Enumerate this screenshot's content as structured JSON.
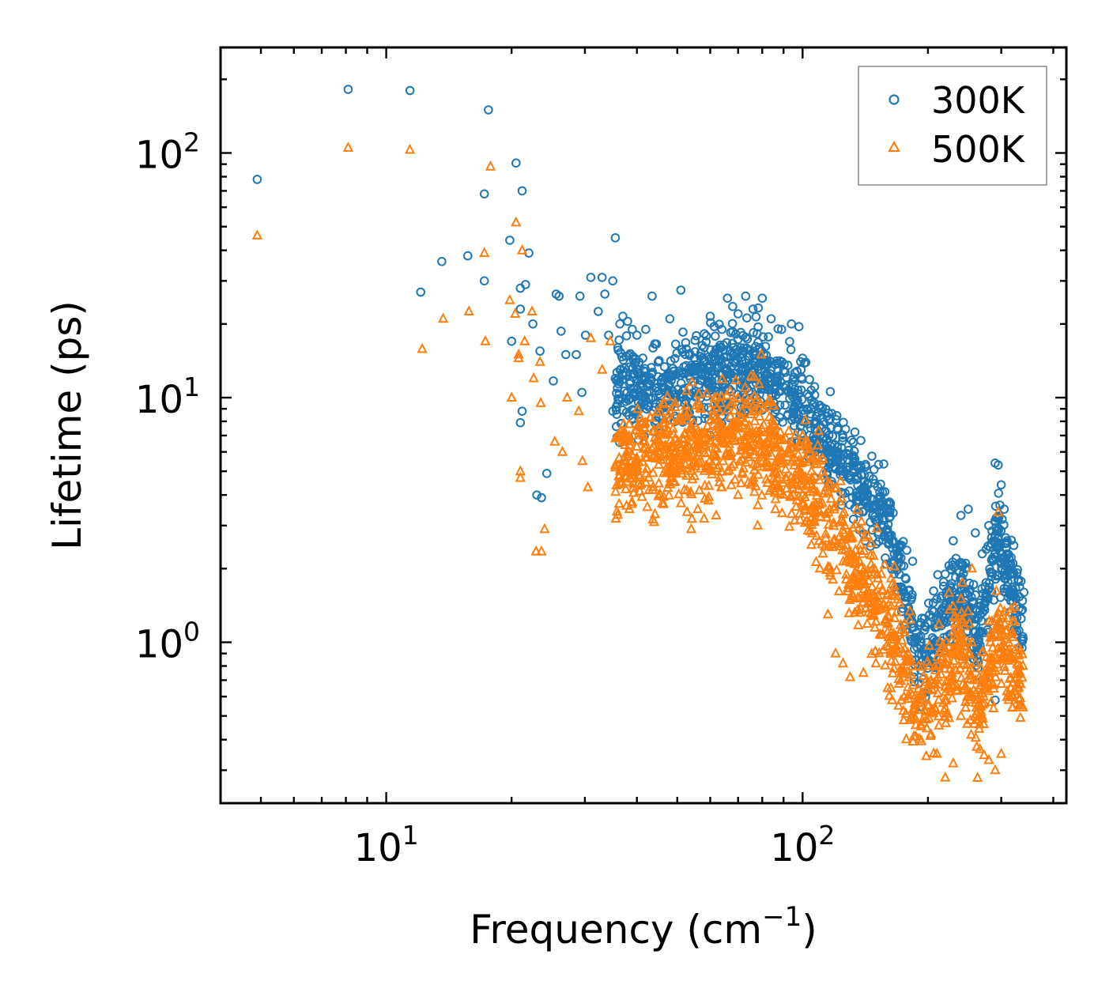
{
  "chart_data": {
    "type": "scatter",
    "xscale": "log",
    "yscale": "log",
    "xlabel": "Frequency (cm",
    "xlabel_sup": "−1",
    "xlabel_end": ")",
    "ylabel": "Lifetime (ps)",
    "xlim": [
      4.0,
      430
    ],
    "ylim": [
      0.22,
      270
    ],
    "x_ticks": [
      {
        "value": 10,
        "base": "10",
        "exp": "1"
      },
      {
        "value": 100,
        "base": "10",
        "exp": "2"
      }
    ],
    "y_ticks": [
      {
        "value": 1,
        "base": "10",
        "exp": "0"
      },
      {
        "value": 10,
        "base": "10",
        "exp": "1"
      },
      {
        "value": 100,
        "base": "10",
        "exp": "2"
      }
    ],
    "legend": {
      "position": "top-right",
      "entries": [
        "300K",
        "500K"
      ]
    },
    "series": [
      {
        "name": "300K",
        "marker": "circle",
        "color": "#1f77b4",
        "points": [
          [
            4.9,
            78
          ],
          [
            8.1,
            182
          ],
          [
            11.4,
            180
          ],
          [
            17.6,
            150
          ],
          [
            20.5,
            91
          ],
          [
            21.2,
            70
          ],
          [
            17.2,
            68
          ],
          [
            19.8,
            44
          ],
          [
            22.0,
            39
          ],
          [
            12.1,
            27
          ],
          [
            13.6,
            36
          ],
          [
            15.7,
            38
          ],
          [
            17.2,
            30
          ],
          [
            21.0,
            28
          ],
          [
            21.6,
            29
          ],
          [
            21.0,
            23
          ],
          [
            22.5,
            20
          ],
          [
            20.0,
            17
          ],
          [
            23.4,
            15.5
          ],
          [
            21.2,
            8.8
          ],
          [
            21.0,
            7.9
          ],
          [
            24.3,
            4.9
          ],
          [
            23.0,
            4.0
          ],
          [
            23.6,
            3.9
          ],
          [
            25.2,
            11.7
          ],
          [
            25.6,
            26.5
          ],
          [
            26.0,
            26
          ],
          [
            26.3,
            18.7
          ],
          [
            27.0,
            15
          ],
          [
            28.6,
            15
          ],
          [
            29.2,
            26
          ],
          [
            29.5,
            10.5
          ],
          [
            30.1,
            18
          ],
          [
            31.0,
            31
          ],
          [
            32.3,
            22.5
          ],
          [
            33.0,
            31
          ],
          [
            33.5,
            26.5
          ],
          [
            34.2,
            18
          ],
          [
            35.0,
            30
          ],
          [
            35.5,
            45
          ],
          [
            36.4,
            20
          ],
          [
            37.0,
            21.5
          ],
          [
            38.0,
            20.5
          ],
          [
            39.0,
            19
          ],
          [
            40.0,
            18
          ],
          [
            42.0,
            19
          ],
          [
            43.5,
            26
          ],
          [
            45.0,
            14
          ],
          [
            48.0,
            21
          ],
          [
            51.0,
            27.5
          ],
          [
            35.0,
            8.8
          ],
          [
            36.0,
            16
          ],
          [
            41.0,
            12
          ],
          [
            46.0,
            11
          ],
          [
            50.0,
            9.5
          ],
          [
            54.0,
            13
          ],
          [
            58.0,
            16
          ],
          [
            60.0,
            21.5
          ],
          [
            64.0,
            19
          ],
          [
            66.0,
            25.5
          ],
          [
            70.0,
            22
          ],
          [
            73.0,
            26
          ],
          [
            76.0,
            23
          ],
          [
            80.0,
            25.5
          ],
          [
            84.0,
            21
          ],
          [
            89.0,
            19
          ],
          [
            94.0,
            20
          ],
          [
            98.0,
            19.5
          ],
          [
            100.0,
            14.5
          ],
          [
            105,
            9
          ],
          [
            110,
            7
          ],
          [
            115,
            6.2
          ],
          [
            120,
            5.5
          ],
          [
            125,
            5
          ],
          [
            130,
            4.7
          ],
          [
            140,
            4.3
          ],
          [
            150,
            3.6
          ],
          [
            160,
            2.8
          ],
          [
            165,
            2.6
          ],
          [
            170,
            2.2
          ],
          [
            175,
            1.6
          ],
          [
            180,
            1.3
          ],
          [
            185,
            1.15
          ],
          [
            190,
            1.05
          ],
          [
            200,
            1.2
          ],
          [
            210,
            1.5
          ],
          [
            220,
            1.9
          ],
          [
            230,
            2.6
          ],
          [
            240,
            3.3
          ],
          [
            250,
            3.5
          ],
          [
            260,
            2.8
          ],
          [
            270,
            2.3
          ],
          [
            280,
            3.0
          ],
          [
            290,
            5.4
          ],
          [
            295,
            5.3
          ],
          [
            300,
            4.4
          ],
          [
            305,
            3.5
          ],
          [
            310,
            2.6
          ],
          [
            320,
            2.1
          ],
          [
            330,
            1.8
          ],
          [
            340,
            1.6
          ],
          [
            290,
            0.58
          ],
          [
            270,
            0.7
          ],
          [
            185,
            0.72
          ]
        ]
      },
      {
        "name": "500K",
        "marker": "triangle",
        "color": "#ff7f0e",
        "points": [
          [
            4.9,
            46
          ],
          [
            8.1,
            105
          ],
          [
            11.4,
            103
          ],
          [
            17.8,
            88
          ],
          [
            20.5,
            52
          ],
          [
            21.2,
            40
          ],
          [
            17.2,
            39
          ],
          [
            12.2,
            15.8
          ],
          [
            13.7,
            21
          ],
          [
            15.8,
            22.5
          ],
          [
            17.3,
            17
          ],
          [
            19.8,
            25
          ],
          [
            20.4,
            22
          ],
          [
            20.8,
            15
          ],
          [
            21.5,
            17
          ],
          [
            22.4,
            22.5
          ],
          [
            23.4,
            14
          ],
          [
            20.0,
            10
          ],
          [
            20.8,
            14.5
          ],
          [
            21.0,
            4.7
          ],
          [
            21.0,
            5
          ],
          [
            22.6,
            12
          ],
          [
            23.5,
            9.5
          ],
          [
            24.0,
            2.9
          ],
          [
            22.9,
            2.35
          ],
          [
            23.6,
            2.35
          ],
          [
            25.4,
            6.6
          ],
          [
            26.5,
            6.0
          ],
          [
            27.2,
            10.0
          ],
          [
            29.0,
            8.8
          ],
          [
            29.6,
            5.5
          ],
          [
            30.5,
            4.3
          ],
          [
            31.0,
            17.5
          ],
          [
            33.0,
            13
          ],
          [
            34.5,
            17
          ],
          [
            36.0,
            7.0
          ],
          [
            38.0,
            5.3
          ],
          [
            40.0,
            5.6
          ],
          [
            42.0,
            4.5
          ],
          [
            44.0,
            3.1
          ],
          [
            46.0,
            3.7
          ],
          [
            48.0,
            4.5
          ],
          [
            50.0,
            5.8
          ],
          [
            52.0,
            4.2
          ],
          [
            54.0,
            2.9
          ],
          [
            56.0,
            3.5
          ],
          [
            58.0,
            3.2
          ],
          [
            62.0,
            3.3
          ],
          [
            64.0,
            4.3
          ],
          [
            66.0,
            5.0
          ],
          [
            70.0,
            4.0
          ],
          [
            74.0,
            4.5
          ],
          [
            78.0,
            3.0
          ],
          [
            82.0,
            5.2
          ],
          [
            86.0,
            3.5
          ],
          [
            90.0,
            5.5
          ],
          [
            95.0,
            4.0
          ],
          [
            100.0,
            7.0
          ],
          [
            105,
            2.5
          ],
          [
            110,
            2.0
          ],
          [
            115,
            1.3
          ],
          [
            120,
            0.9
          ],
          [
            125,
            0.82
          ],
          [
            130,
            0.72
          ],
          [
            140,
            0.75
          ],
          [
            150,
            0.82
          ],
          [
            160,
            0.65
          ],
          [
            170,
            0.55
          ],
          [
            175,
            0.48
          ],
          [
            180,
            0.72
          ],
          [
            190,
            0.8
          ],
          [
            200,
            0.55
          ],
          [
            210,
            0.35
          ],
          [
            220,
            0.28
          ],
          [
            230,
            0.32
          ],
          [
            240,
            0.5
          ],
          [
            250,
            1.0
          ],
          [
            260,
            0.7
          ],
          [
            270,
            0.5
          ],
          [
            280,
            0.33
          ],
          [
            290,
            0.3
          ],
          [
            300,
            0.35
          ],
          [
            310,
            0.9
          ],
          [
            320,
            1.05
          ],
          [
            330,
            0.9
          ],
          [
            255,
            2.0
          ],
          [
            295,
            3.4
          ],
          [
            230,
            1.4
          ]
        ]
      }
    ]
  }
}
